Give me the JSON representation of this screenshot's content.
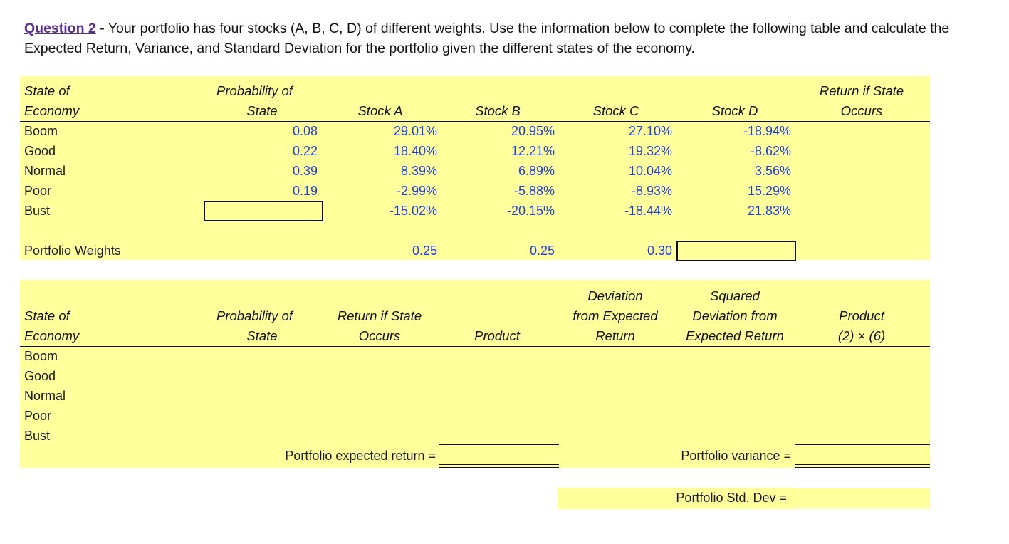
{
  "question": {
    "label": "Question 2",
    "text": " - Your portfolio has four stocks (A, B, C, D) of different weights. Use the information below to complete the following table and calculate the Expected Return, Variance, and Standard Deviation for the portfolio given the different states of the economy."
  },
  "table1": {
    "headers": {
      "state_line1": "State of",
      "state_line2": "Economy",
      "prob_line1": "Probability of",
      "prob_line2": "State",
      "stock_a": "Stock A",
      "stock_b": "Stock B",
      "stock_c": "Stock C",
      "stock_d": "Stock D",
      "ret_line1": "Return if State",
      "ret_line2": "Occurs"
    },
    "rows": [
      {
        "state": "Boom",
        "prob": "0.08",
        "a": "29.01%",
        "b": "20.95%",
        "c": "27.10%",
        "d": "-18.94%"
      },
      {
        "state": "Good",
        "prob": "0.22",
        "a": "18.40%",
        "b": "12.21%",
        "c": "19.32%",
        "d": "-8.62%"
      },
      {
        "state": "Normal",
        "prob": "0.39",
        "a": "8.39%",
        "b": "6.89%",
        "c": "10.04%",
        "d": "3.56%"
      },
      {
        "state": "Poor",
        "prob": "0.19",
        "a": "-2.99%",
        "b": "-5.88%",
        "c": "-8.93%",
        "d": "15.29%"
      },
      {
        "state": "Bust",
        "prob": "",
        "a": "-15.02%",
        "b": "-20.15%",
        "c": "-18.44%",
        "d": "21.83%"
      }
    ],
    "weights": {
      "label": "Portfolio Weights",
      "a": "0.25",
      "b": "0.25",
      "c": "0.30",
      "d": ""
    }
  },
  "table2": {
    "headers": {
      "state_line1": "State of",
      "state_line2": "Economy",
      "prob_line1": "Probability of",
      "prob_line2": "State",
      "ret_line1": "Return if State",
      "ret_line2": "Occurs",
      "product": "Product",
      "dev_line1": "Deviation",
      "dev_line2": "from Expected",
      "dev_line3": "Return",
      "sq_line1": "Squared",
      "sq_line2": "Deviation from",
      "sq_line3": "Expected Return",
      "prod2_line1": "Product",
      "prod2_line2": "(2) × (6)"
    },
    "states": [
      "Boom",
      "Good",
      "Normal",
      "Poor",
      "Bust"
    ],
    "expected_return_label": "Portfolio expected return =",
    "variance_label": "Portfolio variance =",
    "std_dev_label": "Portfolio Std. Dev ="
  }
}
